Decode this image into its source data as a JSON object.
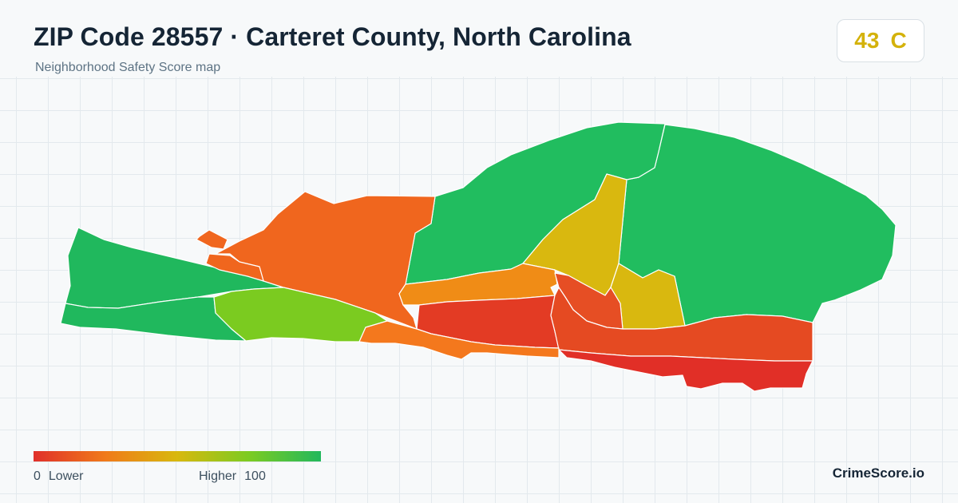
{
  "header": {
    "title": "ZIP Code 28557 · Carteret County, North Carolina",
    "subtitle": "Neighborhood Safety Score map"
  },
  "grade": {
    "score": "43",
    "letter": "C",
    "color": "#d4b20b"
  },
  "legend": {
    "min_value": "0",
    "min_label": "Lower",
    "max_label": "Higher",
    "max_value": "100",
    "gradient": [
      "#e0302a",
      "#f07a1a",
      "#d8b80e",
      "#7ccb22",
      "#22b85c"
    ]
  },
  "brand": "CrimeScore.io",
  "map": {
    "areas": [
      {
        "name": "north-east-green-area",
        "color": "#21bd5f"
      },
      {
        "name": "north-central-green-area",
        "color": "#21bd5f"
      },
      {
        "name": "north-yellow-area",
        "color": "#d9b80f"
      },
      {
        "name": "east-yellow-area",
        "color": "#d9b80f"
      },
      {
        "name": "west-green-area",
        "color": "#20b85d"
      },
      {
        "name": "southwest-green-area",
        "color": "#20b85d"
      },
      {
        "name": "west-central-orange-area",
        "color": "#f0661e"
      },
      {
        "name": "west-lime-area",
        "color": "#7bcb20"
      },
      {
        "name": "central-orange-strip-area",
        "color": "#f08c16"
      },
      {
        "name": "central-red-area",
        "color": "#e33b24"
      },
      {
        "name": "small-red-area",
        "color": "#e64e24"
      },
      {
        "name": "southeast-red-orange-area",
        "color": "#e54a22"
      },
      {
        "name": "southeast-red-area",
        "color": "#e12f27"
      },
      {
        "name": "south-orange-strip-area",
        "color": "#f4781d"
      },
      {
        "name": "small-orange-area",
        "color": "#f0661e"
      }
    ]
  }
}
